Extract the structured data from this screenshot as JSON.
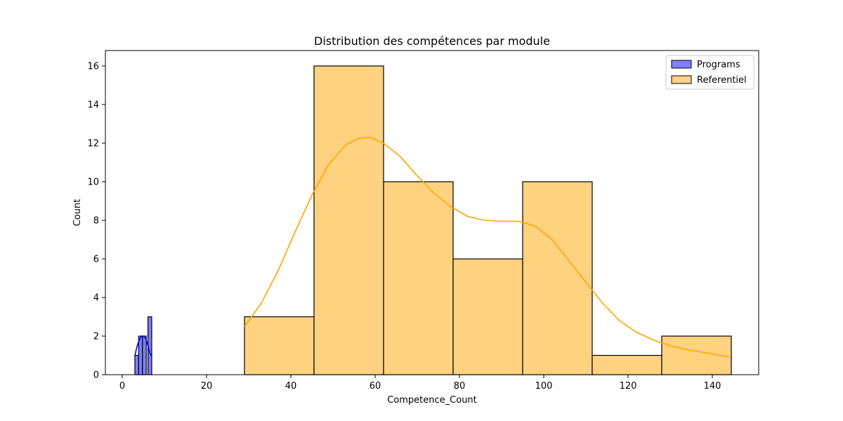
{
  "chart_data": {
    "type": "histogram",
    "title": "Distribution des compétences par module",
    "xlabel": "Competence_Count",
    "ylabel": "Count",
    "xlim": [
      -4,
      151
    ],
    "ylim": [
      0,
      16.8
    ],
    "xticks": [
      0,
      20,
      40,
      60,
      80,
      100,
      120,
      140
    ],
    "yticks": [
      0,
      2,
      4,
      6,
      8,
      10,
      12,
      14,
      16
    ],
    "legend_position": "top-right",
    "series": [
      {
        "name": "Programs",
        "color": "#0000ff",
        "fill": "#7f7fff",
        "bins": [
          {
            "x0": 3.0,
            "x1": 3.9,
            "count": 1
          },
          {
            "x0": 3.9,
            "x1": 4.8,
            "count": 2
          },
          {
            "x0": 4.8,
            "x1": 5.7,
            "count": 2
          },
          {
            "x0": 5.7,
            "x1": 6.1,
            "count": 0
          },
          {
            "x0": 6.1,
            "x1": 7.0,
            "count": 3
          }
        ],
        "kde": [
          [
            3.0,
            1.0
          ],
          [
            3.5,
            1.45
          ],
          [
            4.0,
            1.8
          ],
          [
            4.6,
            2.0
          ],
          [
            5.1,
            2.0
          ],
          [
            5.6,
            1.85
          ],
          [
            6.1,
            1.5
          ],
          [
            6.6,
            1.1
          ],
          [
            7.0,
            0.95
          ]
        ]
      },
      {
        "name": "Referentiel",
        "color": "#ffa500",
        "fill": "#ffd280",
        "bins": [
          {
            "x0": 29.0,
            "x1": 45.5,
            "count": 3
          },
          {
            "x0": 45.5,
            "x1": 62.0,
            "count": 16
          },
          {
            "x0": 62.0,
            "x1": 78.5,
            "count": 10
          },
          {
            "x0": 78.5,
            "x1": 95.0,
            "count": 6
          },
          {
            "x0": 95.0,
            "x1": 111.5,
            "count": 10
          },
          {
            "x0": 111.5,
            "x1": 128.0,
            "count": 1
          },
          {
            "x0": 128.0,
            "x1": 144.5,
            "count": 2
          }
        ],
        "kde": [
          [
            29,
            2.5
          ],
          [
            33,
            3.7
          ],
          [
            37,
            5.4
          ],
          [
            41,
            7.4
          ],
          [
            45,
            9.3
          ],
          [
            49,
            10.9
          ],
          [
            53,
            11.9
          ],
          [
            56,
            12.25
          ],
          [
            59,
            12.3
          ],
          [
            62,
            12.0
          ],
          [
            66,
            11.3
          ],
          [
            70,
            10.3
          ],
          [
            74,
            9.4
          ],
          [
            78,
            8.7
          ],
          [
            82,
            8.2
          ],
          [
            86,
            8.0
          ],
          [
            90,
            7.95
          ],
          [
            94,
            7.95
          ],
          [
            98,
            7.7
          ],
          [
            102,
            7.0
          ],
          [
            106,
            5.9
          ],
          [
            110,
            4.8
          ],
          [
            114,
            3.7
          ],
          [
            118,
            2.8
          ],
          [
            122,
            2.2
          ],
          [
            126,
            1.8
          ],
          [
            130,
            1.5
          ],
          [
            134,
            1.3
          ],
          [
            138,
            1.15
          ],
          [
            142,
            1.0
          ],
          [
            144,
            0.92
          ]
        ]
      }
    ]
  }
}
